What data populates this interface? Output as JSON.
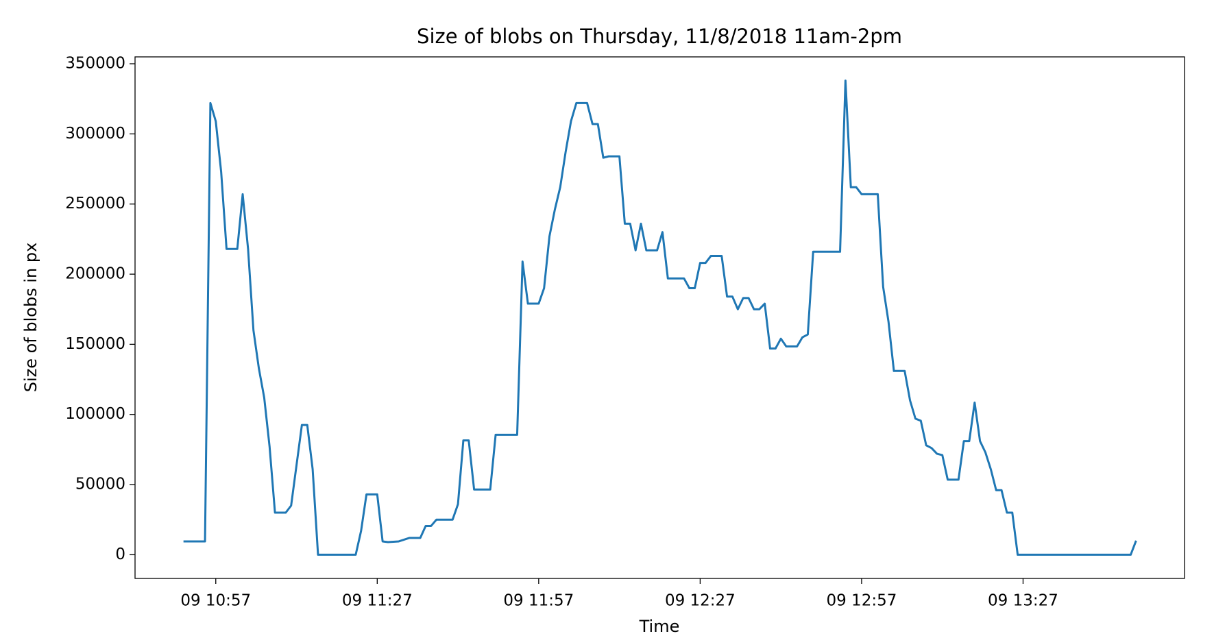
{
  "chart_data": {
    "type": "line",
    "title": "Size of blobs on Thursday, 11/8/2018 11am-2pm",
    "xlabel": "Time",
    "ylabel": "Size of blobs in px",
    "x": [
      "09 10:51",
      "09 10:55",
      "09 10:56",
      "09 10:57",
      "09 10:58",
      "09 10:59",
      "09 11:01",
      "09 11:02",
      "09 11:03",
      "09 11:04",
      "09 11:05",
      "09 11:06",
      "09 11:07",
      "09 11:08",
      "09 11:10",
      "09 11:11",
      "09 11:13",
      "09 11:14",
      "09 11:15",
      "09 11:16",
      "09 11:23",
      "09 11:24",
      "09 11:25",
      "09 11:27",
      "09 11:28",
      "09 11:29",
      "09 11:31",
      "09 11:33",
      "09 11:35",
      "09 11:36",
      "09 11:37",
      "09 11:38",
      "09 11:41",
      "09 11:42",
      "09 11:43",
      "09 11:44",
      "09 11:45",
      "09 11:48",
      "09 11:49",
      "09 11:53",
      "09 11:54",
      "09 11:55",
      "09 11:57",
      "09 11:58",
      "09 11:59",
      "09 12:00",
      "09 12:01",
      "09 12:02",
      "09 12:03",
      "09 12:04",
      "09 12:06",
      "09 12:07",
      "09 12:08",
      "09 12:09",
      "09 12:10",
      "09 12:12",
      "09 12:13",
      "09 12:14",
      "09 12:15",
      "09 12:16",
      "09 12:17",
      "09 12:19",
      "09 12:20",
      "09 12:21",
      "09 12:24",
      "09 12:25",
      "09 12:26",
      "09 12:27",
      "09 12:28",
      "09 12:29",
      "09 12:31",
      "09 12:32",
      "09 12:33",
      "09 12:34",
      "09 12:35",
      "09 12:36",
      "09 12:37",
      "09 12:38",
      "09 12:39",
      "09 12:40",
      "09 12:41",
      "09 12:42",
      "09 12:43",
      "09 12:45",
      "09 12:46",
      "09 12:47",
      "09 12:48",
      "09 12:53",
      "09 12:54",
      "09 12:55",
      "09 12:56",
      "09 12:57",
      "09 13:00",
      "09 13:01",
      "09 13:02",
      "09 13:03",
      "09 13:05",
      "09 13:06",
      "09 13:07",
      "09 13:08",
      "09 13:09",
      "09 13:10",
      "09 13:11",
      "09 13:12",
      "09 13:13",
      "09 13:15",
      "09 13:16",
      "09 13:17",
      "09 13:18",
      "09 13:19",
      "09 13:20",
      "09 13:21",
      "09 13:22",
      "09 13:23",
      "09 13:24",
      "09 13:25",
      "09 13:26",
      "09 13:47",
      "09 13:48"
    ],
    "series": [
      {
        "name": "Size of blobs",
        "color": "#1f77b4",
        "values": [
          9500,
          9500,
          322000,
          309000,
          273000,
          218000,
          218000,
          257000,
          218000,
          160000,
          133000,
          112000,
          77000,
          30000,
          30000,
          35000,
          92500,
          92500,
          61000,
          0,
          0,
          17000,
          43000,
          43000,
          9500,
          9000,
          9500,
          12000,
          12000,
          20500,
          20500,
          25000,
          25000,
          36000,
          81500,
          81500,
          46500,
          46500,
          85500,
          85500,
          209000,
          179000,
          179000,
          190000,
          227000,
          246000,
          262000,
          287000,
          309000,
          322000,
          322000,
          307000,
          307000,
          283000,
          284000,
          284000,
          236000,
          236000,
          217000,
          236000,
          217000,
          217000,
          230000,
          197000,
          197000,
          190000,
          190000,
          208000,
          208000,
          213000,
          213000,
          184000,
          184000,
          175000,
          183000,
          183000,
          175000,
          175000,
          179000,
          147000,
          147000,
          154000,
          148500,
          148500,
          155000,
          157000,
          216000,
          216000,
          338000,
          262000,
          262000,
          257000,
          257000,
          191000,
          166000,
          131000,
          131000,
          110000,
          97000,
          95500,
          78000,
          76000,
          72000,
          71000,
          53500,
          53500,
          81000,
          81000,
          108500,
          81000,
          73000,
          61000,
          46000,
          46000,
          30000,
          30000,
          0,
          0,
          10000
        ]
      }
    ],
    "xlim": [
      "09 10:42",
      "09 13:57"
    ],
    "xticks": [
      "09 10:57",
      "09 11:27",
      "09 11:57",
      "09 12:27",
      "09 12:57",
      "09 13:27"
    ],
    "ylim": [
      -16900,
      354900
    ],
    "yticks": [
      0,
      50000,
      100000,
      150000,
      200000,
      250000,
      300000,
      350000
    ]
  }
}
